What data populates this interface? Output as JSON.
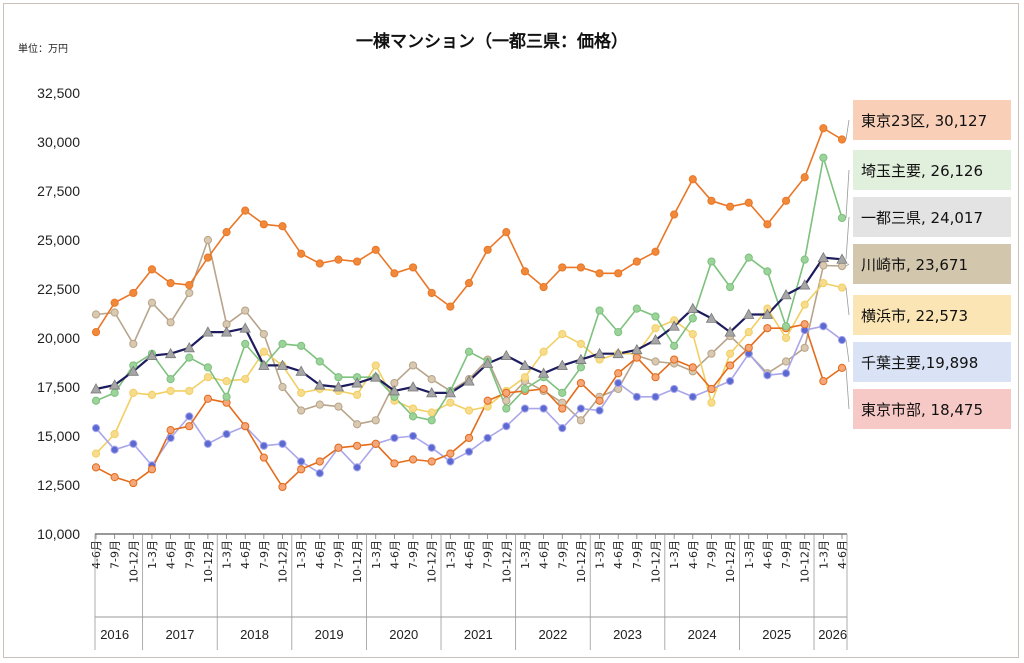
{
  "chart_data": {
    "type": "line",
    "title": "一棟マンション（一都三県：価格）",
    "unit_label": "単位：万円",
    "ylim": [
      10000,
      32500
    ],
    "yticks": [
      10000,
      12500,
      15000,
      17500,
      20000,
      22500,
      25000,
      27500,
      30000,
      32500
    ],
    "ytick_labels": [
      "10,000",
      "12,500",
      "15,000",
      "17,500",
      "20,000",
      "22,500",
      "25,000",
      "27,500",
      "30,000",
      "32,500"
    ],
    "grid": false,
    "categories": [
      "4-6月",
      "7-9月",
      "10-12月",
      "1-3月",
      "4-6月",
      "7-9月",
      "10-12月",
      "1-3月",
      "4-6月",
      "7-9月",
      "10-12月",
      "1-3月",
      "4-6月",
      "7-9月",
      "10-12月",
      "1-3月",
      "4-6月",
      "7-9月",
      "10-12月",
      "1-3月",
      "4-6月",
      "7-9月",
      "10-12月",
      "1-3月",
      "4-6月",
      "7-9月",
      "10-12月",
      "1-3月",
      "4-6月",
      "7-9月",
      "10-12月",
      "1-3月",
      "4-6月",
      "7-9月",
      "10-12月",
      "1-3月",
      "4-6月",
      "7-9月",
      "10-12月",
      "1-3月",
      "4-6月"
    ],
    "years": [
      {
        "label": "2016",
        "count": 3
      },
      {
        "label": "2017",
        "count": 4
      },
      {
        "label": "2018",
        "count": 4
      },
      {
        "label": "2019",
        "count": 4
      },
      {
        "label": "2020",
        "count": 4
      },
      {
        "label": "2021",
        "count": 4
      },
      {
        "label": "2022",
        "count": 4
      },
      {
        "label": "2023",
        "count": 4
      },
      {
        "label": "2024",
        "count": 4
      },
      {
        "label": "2025",
        "count": 4
      },
      {
        "label": "2026",
        "count": 2
      }
    ],
    "series": [
      {
        "name": "川崎市",
        "color": "#b7a48a",
        "marker": "circle",
        "marker_fill": "#d9c9b0",
        "label_bg": "#d2c6ad",
        "values": [
          21200,
          21300,
          19700,
          21800,
          20800,
          22300,
          25000,
          20700,
          21400,
          20200,
          17500,
          16300,
          16600,
          16500,
          15600,
          15800,
          17700,
          18600,
          17900,
          17300,
          17900,
          18900,
          16800,
          17800,
          17300,
          16700,
          15800,
          17000,
          17400,
          19100,
          18800,
          18700,
          18300,
          19200,
          20100,
          19200,
          18200,
          18800,
          19500,
          23700,
          23671
        ]
      },
      {
        "name": "横浜市",
        "color": "#f2cf62",
        "marker": "circle",
        "marker_fill": "#f7dc8e",
        "label_bg": "#fbe5b4",
        "values": [
          14100,
          15100,
          17200,
          17100,
          17300,
          17300,
          18000,
          17800,
          17900,
          19300,
          18600,
          17200,
          17400,
          17300,
          17100,
          18600,
          16800,
          16400,
          16200,
          16700,
          16300,
          16500,
          17300,
          18000,
          19300,
          20200,
          19700,
          18900,
          19200,
          19200,
          20500,
          20900,
          20200,
          16700,
          19200,
          20300,
          21500,
          20000,
          21700,
          22800,
          22573
        ]
      },
      {
        "name": "千葉主要",
        "color": "#a9a6ea",
        "marker": "circle",
        "marker_fill": "#5b6ad2",
        "label_bg": "#dae3f5",
        "values": [
          15400,
          14300,
          14600,
          13500,
          14900,
          16000,
          14600,
          15100,
          15500,
          14500,
          14600,
          13700,
          13100,
          14400,
          13400,
          14600,
          14900,
          15000,
          14400,
          13700,
          14200,
          14900,
          15500,
          16400,
          16400,
          15400,
          16400,
          16300,
          17700,
          17000,
          17000,
          17400,
          17000,
          17400,
          17800,
          19200,
          18100,
          18200,
          20400,
          20600,
          19898
        ]
      },
      {
        "name": "東京市部",
        "color": "#e46c1a",
        "marker": "circle",
        "marker_fill": "#f5a77a",
        "label_bg": "#f7c9c6",
        "values": [
          13400,
          12900,
          12600,
          13300,
          15300,
          15500,
          16900,
          16700,
          15500,
          13900,
          12400,
          13300,
          13700,
          14400,
          14500,
          14600,
          13600,
          13800,
          13700,
          14100,
          14900,
          16800,
          17200,
          17300,
          17400,
          16400,
          17700,
          16800,
          18200,
          19000,
          18000,
          18900,
          18500,
          17400,
          18600,
          19500,
          20500,
          20500,
          20700,
          17800,
          18475
        ]
      },
      {
        "name": "埼玉主要",
        "color": "#7dc17d",
        "marker": "circle",
        "marker_fill": "#9bd39b",
        "label_bg": "#e1efdd",
        "values": [
          16800,
          17200,
          18600,
          19200,
          17900,
          19000,
          18500,
          17000,
          19700,
          18600,
          19700,
          19600,
          18800,
          18000,
          18000,
          18000,
          17000,
          16000,
          15800,
          17300,
          19300,
          18800,
          16400,
          17400,
          18000,
          17200,
          18500,
          21400,
          20300,
          21500,
          21100,
          19600,
          21000,
          23900,
          22600,
          24100,
          23400,
          20600,
          24000,
          29200,
          26126
        ]
      },
      {
        "name": "一都三県",
        "color": "#1d1c5e",
        "marker": "triangle",
        "marker_fill": "#a6a6a6",
        "label_bg": "#e3e3e3",
        "values": [
          17400,
          17600,
          18300,
          19100,
          19200,
          19500,
          20300,
          20300,
          20500,
          18600,
          18600,
          18300,
          17600,
          17500,
          17700,
          18000,
          17300,
          17500,
          17200,
          17200,
          17800,
          18700,
          19100,
          18600,
          18200,
          18600,
          18900,
          19200,
          19200,
          19400,
          19900,
          20600,
          21500,
          21000,
          20300,
          21200,
          21200,
          22200,
          22700,
          24100,
          24017
        ]
      },
      {
        "name": "東京23区",
        "color": "#ea7727",
        "marker": "circle",
        "marker_fill": "#f0893a",
        "label_bg": "#f9cfb8",
        "values": [
          20300,
          21800,
          22300,
          23500,
          22800,
          22700,
          24100,
          25400,
          26500,
          25800,
          25700,
          24300,
          23800,
          24000,
          23900,
          24500,
          23300,
          23600,
          22300,
          21600,
          22800,
          24500,
          25400,
          23400,
          22600,
          23600,
          23600,
          23300,
          23300,
          23900,
          24400,
          26300,
          28100,
          27000,
          26700,
          26900,
          25800,
          27000,
          28200,
          30700,
          30127
        ]
      }
    ],
    "end_labels": [
      {
        "series": "東京23区",
        "text": "東京23区, 30,127"
      },
      {
        "series": "埼玉主要",
        "text": "埼玉主要, 26,126"
      },
      {
        "series": "一都三県",
        "text": "一都三県, 24,017"
      },
      {
        "series": "川崎市",
        "text": "川崎市, 23,671"
      },
      {
        "series": "横浜市",
        "text": "横浜市, 22,573"
      },
      {
        "series": "千葉主要",
        "text": "千葉主要,19,898"
      },
      {
        "series": "東京市部",
        "text": "東京市部, 18,475"
      }
    ]
  }
}
